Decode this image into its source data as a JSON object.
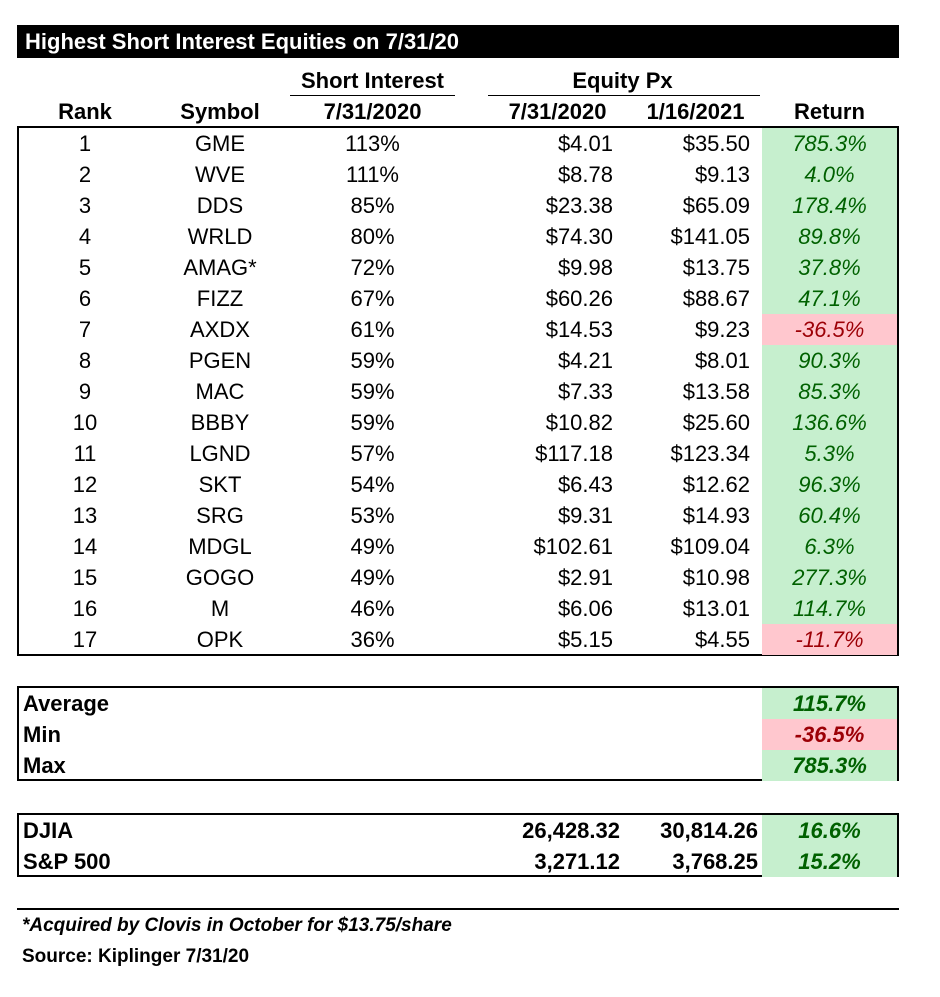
{
  "title": "Highest Short Interest Equities on 7/31/20",
  "headers": {
    "rank": "Rank",
    "symbol": "Symbol",
    "short_interest_group": "Short Interest",
    "short_interest_date": "7/31/2020",
    "equity_px_group": "Equity Px",
    "px_date1": "7/31/2020",
    "px_date2": "1/16/2021",
    "return": "Return"
  },
  "rows": [
    {
      "rank": "1",
      "symbol": "GME",
      "si": "113%",
      "px1": "$4.01",
      "px2": "$35.50",
      "ret": "785.3%",
      "neg": false
    },
    {
      "rank": "2",
      "symbol": "WVE",
      "si": "111%",
      "px1": "$8.78",
      "px2": "$9.13",
      "ret": "4.0%",
      "neg": false
    },
    {
      "rank": "3",
      "symbol": "DDS",
      "si": "85%",
      "px1": "$23.38",
      "px2": "$65.09",
      "ret": "178.4%",
      "neg": false
    },
    {
      "rank": "4",
      "symbol": "WRLD",
      "si": "80%",
      "px1": "$74.30",
      "px2": "$141.05",
      "ret": "89.8%",
      "neg": false
    },
    {
      "rank": "5",
      "symbol": "AMAG*",
      "si": "72%",
      "px1": "$9.98",
      "px2": "$13.75",
      "ret": "37.8%",
      "neg": false
    },
    {
      "rank": "6",
      "symbol": "FIZZ",
      "si": "67%",
      "px1": "$60.26",
      "px2": "$88.67",
      "ret": "47.1%",
      "neg": false
    },
    {
      "rank": "7",
      "symbol": "AXDX",
      "si": "61%",
      "px1": "$14.53",
      "px2": "$9.23",
      "ret": "-36.5%",
      "neg": true
    },
    {
      "rank": "8",
      "symbol": "PGEN",
      "si": "59%",
      "px1": "$4.21",
      "px2": "$8.01",
      "ret": "90.3%",
      "neg": false
    },
    {
      "rank": "9",
      "symbol": "MAC",
      "si": "59%",
      "px1": "$7.33",
      "px2": "$13.58",
      "ret": "85.3%",
      "neg": false
    },
    {
      "rank": "10",
      "symbol": "BBBY",
      "si": "59%",
      "px1": "$10.82",
      "px2": "$25.60",
      "ret": "136.6%",
      "neg": false
    },
    {
      "rank": "11",
      "symbol": "LGND",
      "si": "57%",
      "px1": "$117.18",
      "px2": "$123.34",
      "ret": "5.3%",
      "neg": false
    },
    {
      "rank": "12",
      "symbol": "SKT",
      "si": "54%",
      "px1": "$6.43",
      "px2": "$12.62",
      "ret": "96.3%",
      "neg": false
    },
    {
      "rank": "13",
      "symbol": "SRG",
      "si": "53%",
      "px1": "$9.31",
      "px2": "$14.93",
      "ret": "60.4%",
      "neg": false
    },
    {
      "rank": "14",
      "symbol": "MDGL",
      "si": "49%",
      "px1": "$102.61",
      "px2": "$109.04",
      "ret": "6.3%",
      "neg": false
    },
    {
      "rank": "15",
      "symbol": "GOGO",
      "si": "49%",
      "px1": "$2.91",
      "px2": "$10.98",
      "ret": "277.3%",
      "neg": false
    },
    {
      "rank": "16",
      "symbol": "M",
      "si": "46%",
      "px1": "$6.06",
      "px2": "$13.01",
      "ret": "114.7%",
      "neg": false
    },
    {
      "rank": "17",
      "symbol": "OPK",
      "si": "36%",
      "px1": "$5.15",
      "px2": "$4.55",
      "ret": "-11.7%",
      "neg": true
    }
  ],
  "summary": {
    "average_label": "Average",
    "average": "115.7%",
    "min_label": "Min",
    "min": "-36.5%",
    "max_label": "Max",
    "max": "785.3%"
  },
  "indices": [
    {
      "name": "DJIA",
      "v1": "26,428.32",
      "v2": "30,814.26",
      "ret": "16.6%"
    },
    {
      "name": "S&P 500",
      "v1": "3,271.12",
      "v2": "3,768.25",
      "ret": "15.2%"
    }
  ],
  "footnote": "*Acquired by Clovis in October for $13.75/share",
  "source": "Source: Kiplinger 7/31/20",
  "colors": {
    "positive_bg": "#c6efce",
    "positive_text": "#006100",
    "negative_bg": "#ffc7ce",
    "negative_text": "#9c0006"
  }
}
